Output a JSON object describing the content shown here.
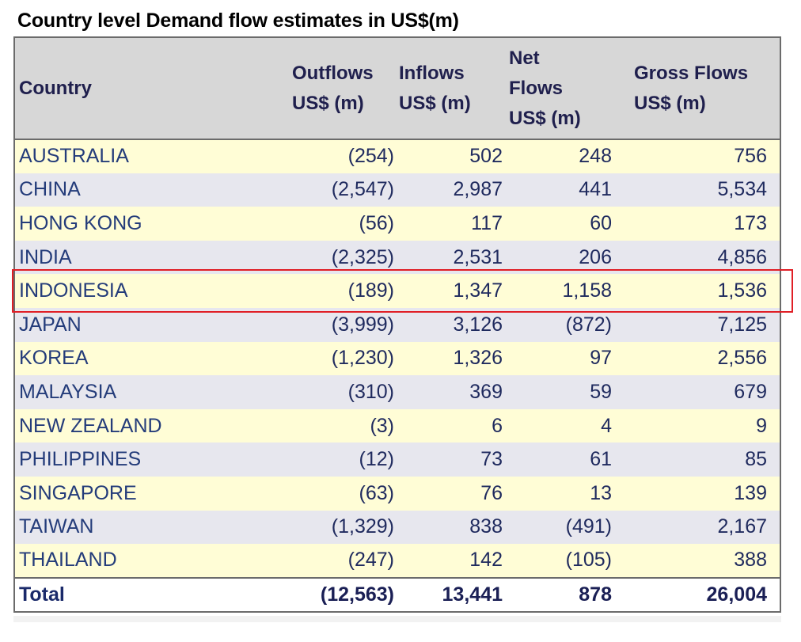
{
  "title": "Country level Demand flow estimates in US$(m)",
  "headers": {
    "country": "Country",
    "outflows": [
      "Outflows",
      "US$ (m)"
    ],
    "inflows": [
      "Inflows",
      "US$ (m)"
    ],
    "net": [
      "Net",
      "Flows",
      "US$ (m)"
    ],
    "gross": [
      "Gross Flows",
      "US$ (m)"
    ]
  },
  "rows": [
    {
      "country": "AUSTRALIA",
      "outflows": "(254)",
      "inflows": "502",
      "net": "248",
      "gross": "756"
    },
    {
      "country": "CHINA",
      "outflows": "(2,547)",
      "inflows": "2,987",
      "net": "441",
      "gross": "5,534"
    },
    {
      "country": "HONG KONG",
      "outflows": "(56)",
      "inflows": "117",
      "net": "60",
      "gross": "173"
    },
    {
      "country": "INDIA",
      "outflows": "(2,325)",
      "inflows": "2,531",
      "net": "206",
      "gross": "4,856"
    },
    {
      "country": "INDONESIA",
      "outflows": "(189)",
      "inflows": "1,347",
      "net": "1,158",
      "gross": "1,536"
    },
    {
      "country": "JAPAN",
      "outflows": "(3,999)",
      "inflows": "3,126",
      "net": "(872)",
      "gross": "7,125"
    },
    {
      "country": "KOREA",
      "outflows": "(1,230)",
      "inflows": "1,326",
      "net": "97",
      "gross": "2,556"
    },
    {
      "country": "MALAYSIA",
      "outflows": "(310)",
      "inflows": "369",
      "net": "59",
      "gross": "679"
    },
    {
      "country": "NEW ZEALAND",
      "outflows": "(3)",
      "inflows": "6",
      "net": "4",
      "gross": "9"
    },
    {
      "country": "PHILIPPINES",
      "outflows": "(12)",
      "inflows": "73",
      "net": "61",
      "gross": "85"
    },
    {
      "country": "SINGAPORE",
      "outflows": "(63)",
      "inflows": "76",
      "net": "13",
      "gross": "139"
    },
    {
      "country": "TAIWAN",
      "outflows": "(1,329)",
      "inflows": "838",
      "net": "(491)",
      "gross": "2,167"
    },
    {
      "country": "THAILAND",
      "outflows": "(247)",
      "inflows": "142",
      "net": "(105)",
      "gross": "388"
    }
  ],
  "total": {
    "country": "Total",
    "outflows": "(12,563)",
    "inflows": "13,441",
    "net": "878",
    "gross": "26,004"
  },
  "highlighted_row": "INDONESIA",
  "colors": {
    "header_bg": "#d7d7d7",
    "row_odd": "#fffdd6",
    "row_even": "#e7e7ee",
    "highlight_border": "#e01f26",
    "text": "#1f2a5e"
  }
}
